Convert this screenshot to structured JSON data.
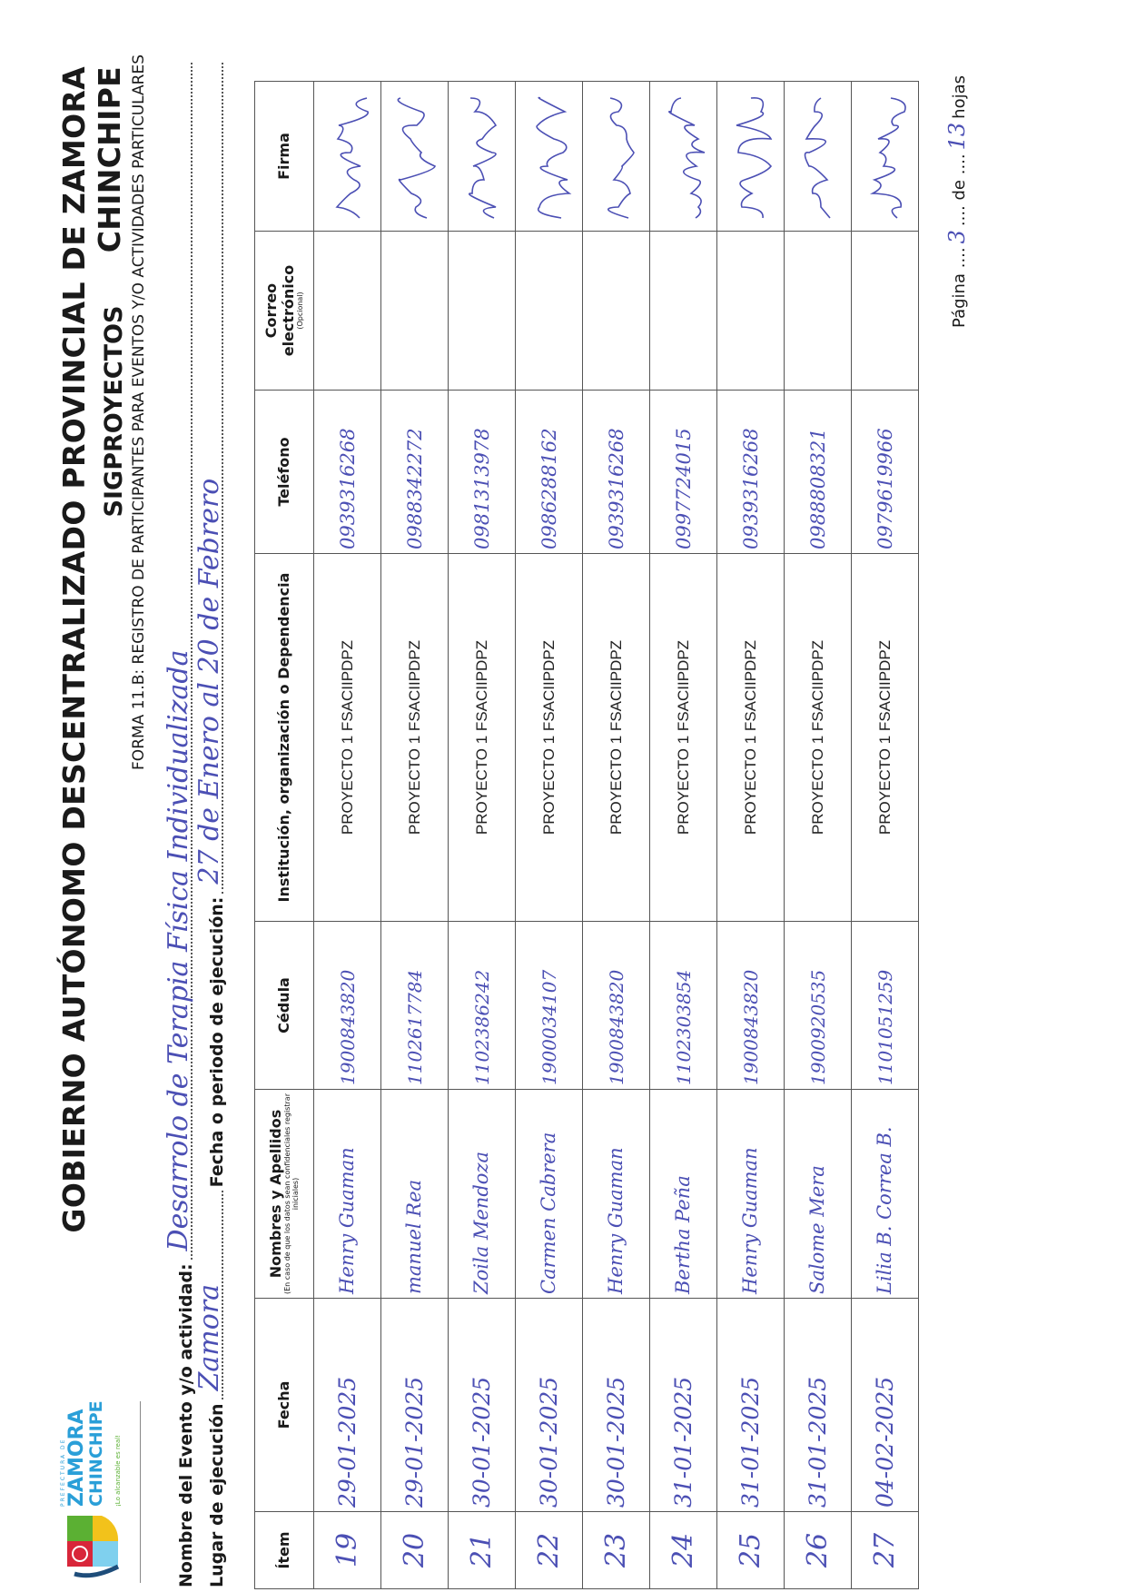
{
  "header": {
    "title": "GOBIERNO AUTÓNOMO DESCENTRALIZADO PROVINCIAL DE ZAMORA CHINCHIPE",
    "subtitle": "SIGPROYECTOS",
    "form_name": "FORMA 11.B: REGISTRO DE PARTICIPANTES PARA EVENTOS Y/O ACTIVIDADES PARTICULARES",
    "logo": {
      "top_text": "PREFECTURA DE",
      "line1": "ZAMORA",
      "line2": "CHINCHIPE",
      "tagline": "¡Lo alcanzable es real!",
      "colors": {
        "blue": "#2a9fd8",
        "red": "#d8263a",
        "green": "#5bb033",
        "yellow": "#f2c21b"
      }
    }
  },
  "fields": {
    "event_label": "Nombre del Evento y/o actividad:",
    "event_value": "Desarrolo de Terapia Física Individualizada",
    "place_label": "Lugar de ejecución",
    "place_value": "Zamora",
    "date_label": "Fecha o periodo de ejecución:",
    "date_value": "27 de Enero al 20 de Febrero"
  },
  "table": {
    "columns": [
      {
        "label": "Ítem"
      },
      {
        "label": "Fecha"
      },
      {
        "label": "Nombres y Apellidos",
        "note": "(En caso de que los datos sean confidenciales registrar iniciales)"
      },
      {
        "label": "Cédula"
      },
      {
        "label": "Institución, organización o Dependencia"
      },
      {
        "label": "Teléfono"
      },
      {
        "label": "Correo electrónico",
        "note": "(Opcional)"
      },
      {
        "label": "Firma"
      }
    ],
    "rows": [
      {
        "item": "19",
        "fecha": "29-01-2025",
        "nombre": "Henry Guaman",
        "cedula": "1900843820",
        "institucion": "PROYECTO 1 FSACIIPDPZ",
        "telefono": "0939316268",
        "correo": ""
      },
      {
        "item": "20",
        "fecha": "29-01-2025",
        "nombre": "manuel Rea",
        "cedula": "1102617784",
        "institucion": "PROYECTO 1 FSACIIPDPZ",
        "telefono": "0988342272",
        "correo": ""
      },
      {
        "item": "21",
        "fecha": "30-01-2025",
        "nombre": "Zoila Mendoza",
        "cedula": "1102386242",
        "institucion": "PROYECTO 1 FSACIIPDPZ",
        "telefono": "0981313978",
        "correo": ""
      },
      {
        "item": "22",
        "fecha": "30-01-2025",
        "nombre": "Carmen Cabrera",
        "cedula": "1900034107",
        "institucion": "PROYECTO 1 FSACIIPDPZ",
        "telefono": "0986288162",
        "correo": ""
      },
      {
        "item": "23",
        "fecha": "30-01-2025",
        "nombre": "Henry Guaman",
        "cedula": "1900843820",
        "institucion": "PROYECTO 1 FSACIIPDPZ",
        "telefono": "0939316268",
        "correo": ""
      },
      {
        "item": "24",
        "fecha": "31-01-2025",
        "nombre": "Bertha Peña",
        "cedula": "1102303854",
        "institucion": "PROYECTO 1 FSACIIPDPZ",
        "telefono": "0997724015",
        "correo": ""
      },
      {
        "item": "25",
        "fecha": "31-01-2025",
        "nombre": "Henry Guaman",
        "cedula": "1900843820",
        "institucion": "PROYECTO 1 FSACIIPDPZ",
        "telefono": "0939316268",
        "correo": ""
      },
      {
        "item": "26",
        "fecha": "31-01-2025",
        "nombre": "Salome Mera",
        "cedula": "1900920535",
        "institucion": "PROYECTO 1 FSACIIPDPZ",
        "telefono": "0988808321",
        "correo": ""
      },
      {
        "item": "27",
        "fecha": "04-02-2025",
        "nombre": "Lilia B. Correa B.",
        "cedula": "1101051259",
        "institucion": "PROYECTO 1 FSACIIPDPZ",
        "telefono": "0979619966",
        "correo": ""
      }
    ]
  },
  "footer": {
    "page_label": "Página",
    "page": "3",
    "of_label": "de",
    "total": "13",
    "sheets_label": "hojas"
  },
  "ink_color": "#4b4fb4"
}
